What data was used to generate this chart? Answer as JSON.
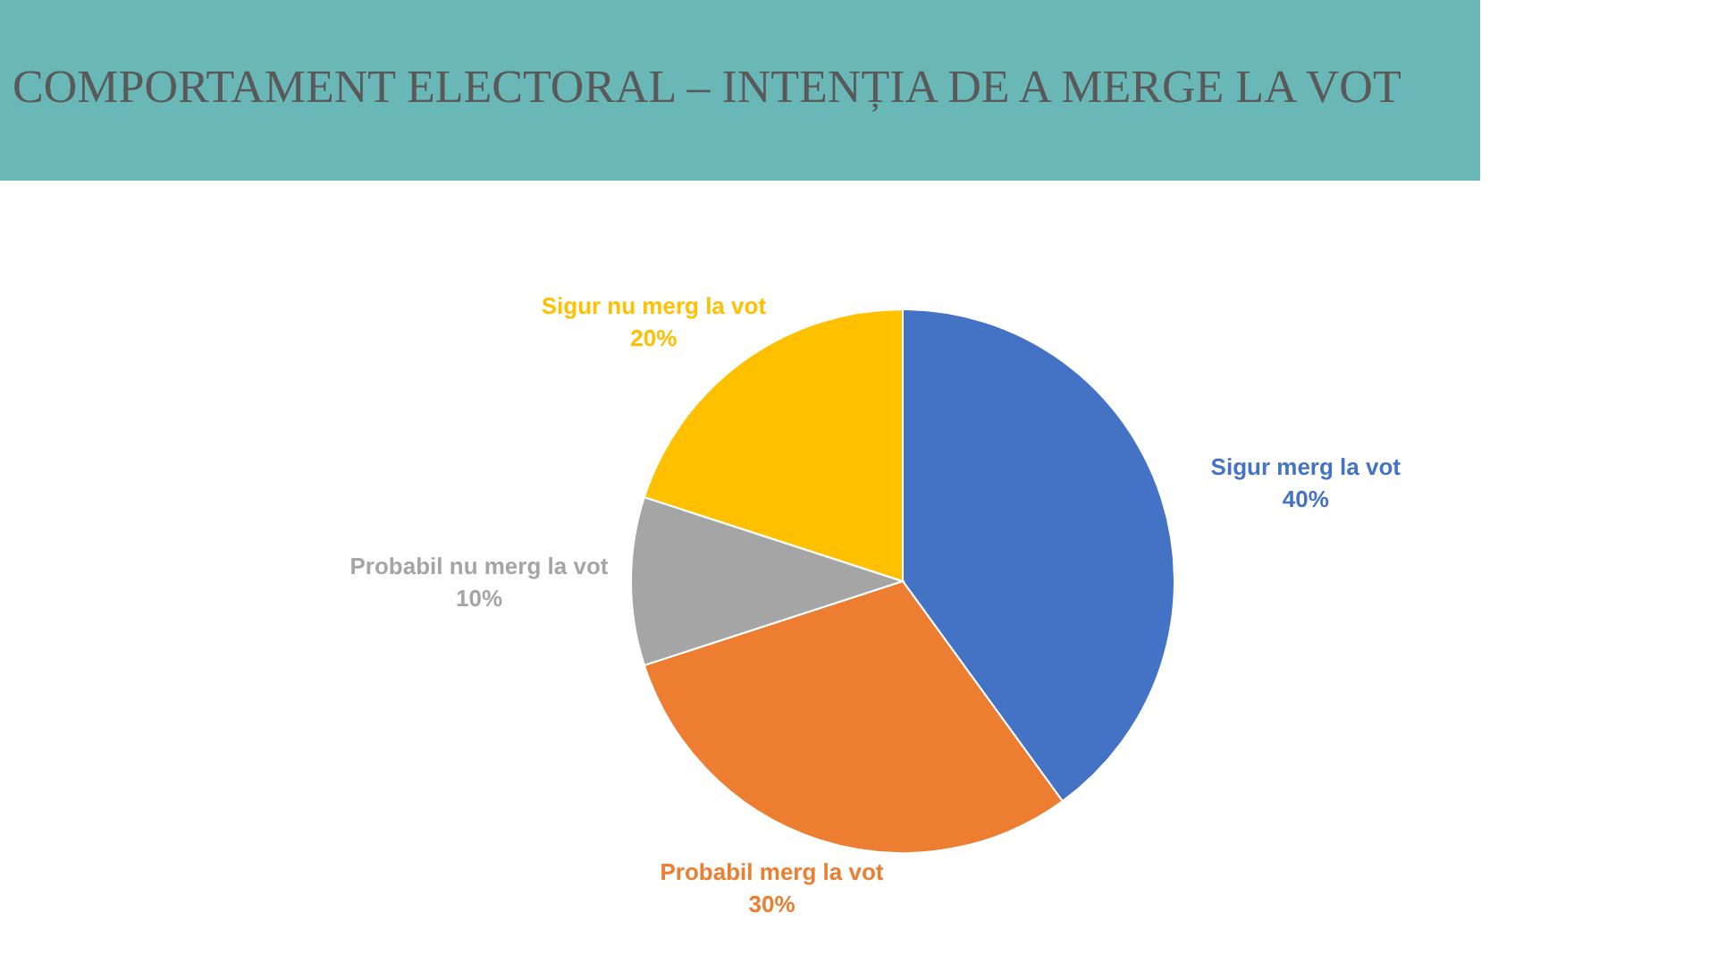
{
  "chart_data": {
    "type": "pie",
    "title": "COMPORTAMENT ELECTORAL – INTENȚIA DE A MERGE LA VOT",
    "categories": [
      "Sigur merg la vot",
      "Probabil merg la vot",
      "Probabil nu merg la vot",
      "Sigur nu merg la vot"
    ],
    "values": [
      40,
      30,
      10,
      20
    ],
    "colors": [
      "#4472c4",
      "#ed7d31",
      "#a5a5a5",
      "#ffc000"
    ],
    "value_labels": [
      "40%",
      "30%",
      "10%",
      "20%"
    ]
  }
}
